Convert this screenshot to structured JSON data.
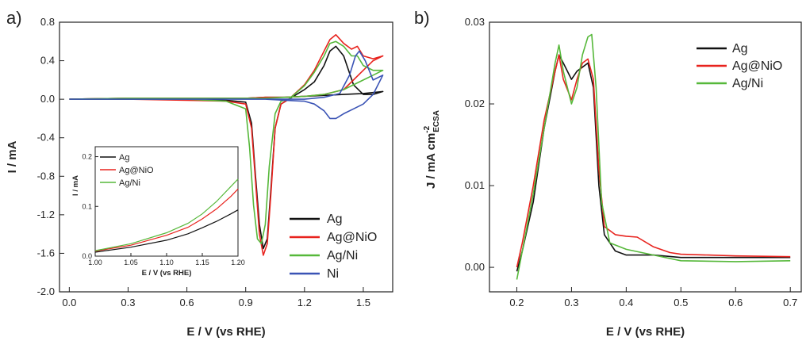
{
  "chart_data": [
    {
      "panel": "a)",
      "type": "line",
      "xlabel": "E / V (vs RHE)",
      "ylabel": "I / mA",
      "xlim": [
        -0.05,
        1.65
      ],
      "ylim": [
        -2.0,
        0.8
      ],
      "xticks": [
        "0.0",
        "0.3",
        "0.6",
        "0.9",
        "1.2",
        "1.5"
      ],
      "yticks": [
        "-2.0",
        "-1.6",
        "-1.2",
        "-0.8",
        "-0.4",
        "0.0",
        "0.4",
        "0.8"
      ],
      "legend": "lower-right",
      "series": [
        {
          "name": "Ag",
          "color": "#111111",
          "x": [
            0.0,
            0.3,
            0.6,
            0.8,
            0.9,
            0.93,
            0.95,
            0.97,
            0.99,
            1.01,
            1.03,
            1.05,
            1.08,
            1.12,
            1.2,
            1.25,
            1.3,
            1.33,
            1.36,
            1.4,
            1.45,
            1.5,
            1.55,
            1.6,
            1.5,
            1.4,
            1.3,
            1.2,
            1.1,
            1.0,
            0.9,
            0.6,
            0.3,
            0.0
          ],
          "y": [
            0.0,
            0.0,
            0.0,
            -0.01,
            -0.03,
            -0.25,
            -0.8,
            -1.3,
            -1.55,
            -1.45,
            -0.9,
            -0.3,
            -0.05,
            0.0,
            0.1,
            0.18,
            0.35,
            0.5,
            0.55,
            0.45,
            0.15,
            0.05,
            0.05,
            0.08,
            0.06,
            0.05,
            0.04,
            0.03,
            0.02,
            0.02,
            0.01,
            0.01,
            0.01,
            0.0
          ]
        },
        {
          "name": "Ag@NiO",
          "color": "#e8231e",
          "x": [
            0.0,
            0.3,
            0.6,
            0.8,
            0.9,
            0.93,
            0.95,
            0.97,
            0.99,
            1.01,
            1.03,
            1.05,
            1.08,
            1.12,
            1.2,
            1.25,
            1.3,
            1.33,
            1.36,
            1.4,
            1.44,
            1.47,
            1.5,
            1.55,
            1.6,
            1.55,
            1.5,
            1.4,
            1.3,
            1.2,
            1.1,
            1.0,
            0.9,
            0.6,
            0.3,
            0.0
          ],
          "y": [
            0.0,
            0.0,
            -0.01,
            -0.02,
            -0.05,
            -0.3,
            -0.85,
            -1.4,
            -1.62,
            -1.5,
            -0.95,
            -0.3,
            -0.05,
            0.0,
            0.15,
            0.3,
            0.5,
            0.62,
            0.67,
            0.58,
            0.52,
            0.55,
            0.45,
            0.42,
            0.45,
            0.4,
            0.3,
            0.1,
            0.05,
            0.03,
            0.02,
            0.02,
            0.01,
            0.01,
            0.01,
            0.0
          ]
        },
        {
          "name": "Ag/Ni",
          "color": "#56b83a",
          "x": [
            0.0,
            0.3,
            0.6,
            0.8,
            0.9,
            0.92,
            0.94,
            0.96,
            0.98,
            1.0,
            1.02,
            1.05,
            1.08,
            1.12,
            1.2,
            1.25,
            1.3,
            1.33,
            1.36,
            1.4,
            1.44,
            1.47,
            1.5,
            1.55,
            1.6,
            1.55,
            1.5,
            1.4,
            1.3,
            1.2,
            1.1,
            1.0,
            0.9,
            0.6,
            0.3,
            0.0
          ],
          "y": [
            0.0,
            0.0,
            0.0,
            -0.02,
            -0.1,
            -0.5,
            -1.1,
            -1.45,
            -1.5,
            -1.3,
            -0.7,
            -0.15,
            -0.02,
            0.0,
            0.14,
            0.28,
            0.45,
            0.58,
            0.6,
            0.55,
            0.45,
            0.45,
            0.35,
            0.3,
            0.3,
            0.25,
            0.2,
            0.1,
            0.05,
            0.03,
            0.02,
            0.01,
            0.01,
            0.01,
            0.01,
            0.0
          ]
        },
        {
          "name": "Ni",
          "color": "#3a53b5",
          "x": [
            0.0,
            0.3,
            0.6,
            0.9,
            1.2,
            1.3,
            1.38,
            1.43,
            1.46,
            1.48,
            1.51,
            1.55,
            1.6,
            1.55,
            1.5,
            1.45,
            1.4,
            1.36,
            1.33,
            1.3,
            1.25,
            1.2,
            1.1,
            1.0,
            0.9,
            0.6,
            0.3,
            0.0
          ],
          "y": [
            0.0,
            0.0,
            0.0,
            0.0,
            0.0,
            0.02,
            0.06,
            0.25,
            0.45,
            0.5,
            0.4,
            0.2,
            0.25,
            0.05,
            -0.05,
            -0.1,
            -0.15,
            -0.2,
            -0.2,
            -0.12,
            -0.05,
            -0.02,
            -0.01,
            0.0,
            0.0,
            0.0,
            0.0,
            0.0
          ]
        }
      ],
      "inset": {
        "type": "line",
        "xlabel": "E / V (vs RHE)",
        "ylabel": "I / mA",
        "xlim": [
          1.0,
          1.2
        ],
        "ylim": [
          0.0,
          0.22
        ],
        "xticks": [
          "1.00",
          "1.05",
          "1.10",
          "1.15",
          "1.20"
        ],
        "yticks": [
          "0.0",
          "0.1",
          "0.2"
        ],
        "yticks_minor": [
          "0.0",
          "0.1",
          "0.2"
        ],
        "legend": "top-left",
        "series": [
          {
            "name": "Ag",
            "color": "#111111",
            "x": [
              1.0,
              1.05,
              1.1,
              1.13,
              1.15,
              1.17,
              1.19,
              1.2
            ],
            "y": [
              0.008,
              0.018,
              0.032,
              0.045,
              0.057,
              0.07,
              0.085,
              0.093
            ]
          },
          {
            "name": "Ag@NiO",
            "color": "#e8231e",
            "x": [
              1.0,
              1.05,
              1.1,
              1.13,
              1.15,
              1.17,
              1.19,
              1.2
            ],
            "y": [
              0.01,
              0.022,
              0.042,
              0.058,
              0.075,
              0.095,
              0.12,
              0.135
            ]
          },
          {
            "name": "Ag/Ni",
            "color": "#56b83a",
            "x": [
              1.0,
              1.05,
              1.1,
              1.13,
              1.15,
              1.17,
              1.19,
              1.2
            ],
            "y": [
              0.011,
              0.025,
              0.047,
              0.066,
              0.085,
              0.11,
              0.14,
              0.155
            ]
          }
        ]
      }
    },
    {
      "panel": "b)",
      "type": "line",
      "xlabel": "E / V (vs RHE)",
      "ylabel": "J / mA cm",
      "ylabel_sup": "-2",
      "ylabel_sub": "ECSA",
      "xlim": [
        0.15,
        0.72
      ],
      "ylim": [
        -0.003,
        0.03
      ],
      "xticks": [
        "0.2",
        "0.3",
        "0.4",
        "0.5",
        "0.6",
        "0.7"
      ],
      "yticks": [
        "0.00",
        "0.01",
        "0.02",
        "0.03"
      ],
      "legend": "top-right",
      "series": [
        {
          "name": "Ag",
          "color": "#111111",
          "x": [
            0.2,
            0.21,
            0.23,
            0.25,
            0.27,
            0.277,
            0.285,
            0.3,
            0.31,
            0.32,
            0.33,
            0.34,
            0.35,
            0.36,
            0.38,
            0.4,
            0.45,
            0.5,
            0.6,
            0.7
          ],
          "y": [
            -0.0005,
            0.002,
            0.008,
            0.017,
            0.024,
            0.026,
            0.025,
            0.023,
            0.024,
            0.0245,
            0.025,
            0.022,
            0.01,
            0.004,
            0.002,
            0.0015,
            0.0015,
            0.0012,
            0.0012,
            0.0012
          ]
        },
        {
          "name": "Ag@NiO",
          "color": "#e8231e",
          "x": [
            0.2,
            0.21,
            0.23,
            0.25,
            0.27,
            0.277,
            0.285,
            0.3,
            0.31,
            0.32,
            0.33,
            0.34,
            0.35,
            0.36,
            0.38,
            0.4,
            0.42,
            0.45,
            0.48,
            0.5,
            0.55,
            0.6,
            0.7
          ],
          "y": [
            0.0,
            0.003,
            0.01,
            0.018,
            0.024,
            0.026,
            0.023,
            0.0205,
            0.023,
            0.025,
            0.0255,
            0.023,
            0.012,
            0.005,
            0.004,
            0.0038,
            0.0037,
            0.0025,
            0.0018,
            0.0016,
            0.0015,
            0.0014,
            0.0013
          ]
        },
        {
          "name": "Ag/Ni",
          "color": "#56b83a",
          "x": [
            0.2,
            0.21,
            0.23,
            0.25,
            0.27,
            0.277,
            0.285,
            0.3,
            0.31,
            0.32,
            0.33,
            0.337,
            0.345,
            0.355,
            0.37,
            0.4,
            0.45,
            0.5,
            0.6,
            0.7
          ],
          "y": [
            -0.0015,
            0.002,
            0.009,
            0.017,
            0.025,
            0.0272,
            0.024,
            0.02,
            0.022,
            0.026,
            0.0282,
            0.0285,
            0.022,
            0.008,
            0.003,
            0.0022,
            0.0015,
            0.0008,
            0.0007,
            0.0008
          ]
        }
      ]
    }
  ]
}
